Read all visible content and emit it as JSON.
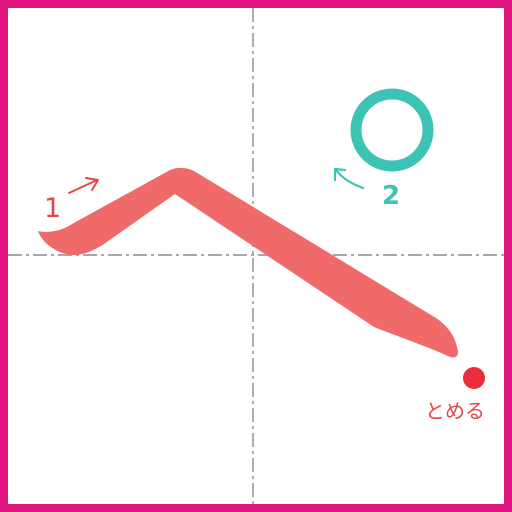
{
  "colors": {
    "frame": "#e0157f",
    "guide": "#8a8a8a",
    "stroke1": "#f06a6a",
    "stroke2": "#3cc3b4",
    "stop_mark": "#ea2d3a"
  },
  "strokes": [
    {
      "number": "1",
      "shape": "hook-stroke"
    },
    {
      "number": "2",
      "shape": "circle"
    }
  ],
  "stop": {
    "label": "とめる"
  }
}
